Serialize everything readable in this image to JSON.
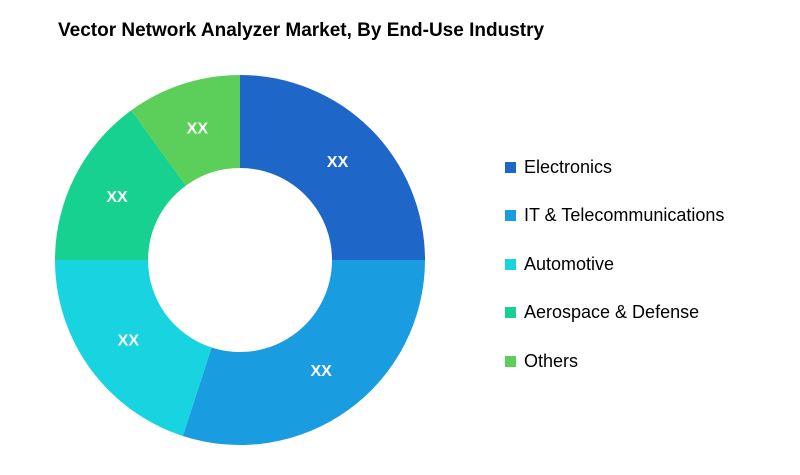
{
  "chart_data": {
    "type": "pie",
    "title": "Vector Network Analyzer Market, By End-Use Industry",
    "categories": [
      "Electronics",
      "IT & Telecommunications",
      "Automotive",
      "Aerospace & Defense",
      "Others"
    ],
    "values": [
      25,
      30,
      20,
      15,
      10
    ],
    "data_labels": [
      "XX",
      "XX",
      "XX",
      "XX",
      "XX"
    ],
    "colors": [
      "#1F66C9",
      "#199DE0",
      "#18D3E0",
      "#16D18F",
      "#5CCF5A"
    ],
    "legend_position": "right",
    "style": "donut"
  }
}
